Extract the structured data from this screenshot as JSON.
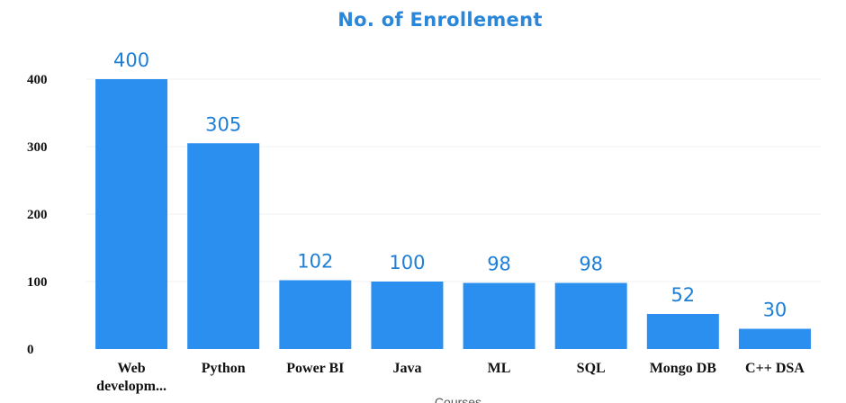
{
  "chart_data": {
    "type": "bar",
    "title": "No. of Enrollement",
    "xlabel": "Courses",
    "ylabel": "",
    "categories": [
      "Web developm...",
      "Python",
      "Power BI",
      "Java",
      "ML",
      "SQL",
      "Mongo DB",
      "C++ DSA"
    ],
    "values": [
      400,
      305,
      102,
      100,
      98,
      98,
      52,
      30
    ],
    "data_labels": [
      "400",
      "305",
      "102",
      "100",
      "98",
      "98",
      "52",
      "30"
    ],
    "y_ticks": [
      "0",
      "100",
      "200",
      "300",
      "400"
    ],
    "ylim": [
      0,
      400
    ],
    "grid": true,
    "legend": "none",
    "bar_color": "#2b8ff0",
    "title_color": "#2a86d9",
    "label_color": "#1d7fd6"
  }
}
